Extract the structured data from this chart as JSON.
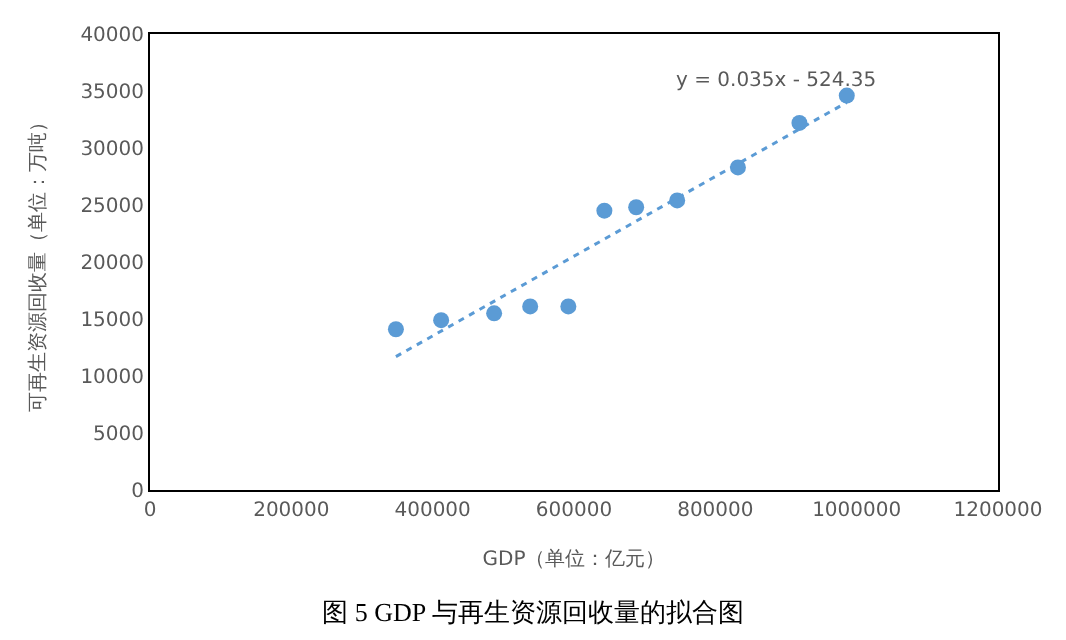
{
  "chart_data": {
    "type": "scatter",
    "title": "图 5 GDP 与再生资源回收量的拟合图",
    "xlabel": "GDP（单位：亿元）",
    "ylabel": "可再生资源回收量（单位：万吨）",
    "x": [
      348000,
      412000,
      487000,
      538000,
      592000,
      643000,
      688000,
      746000,
      832000,
      919000,
      986000
    ],
    "series": [
      {
        "color": "#5b9bd5",
        "marker": "circle",
        "values": [
          14100,
          14900,
          15500,
          16100,
          16100,
          24500,
          24800,
          25400,
          28300,
          32200,
          34600
        ]
      },
      {
        "type": "line",
        "color": "#5b9bd5",
        "line_style": "dotted",
        "x": [
          348000,
          986000
        ],
        "values": [
          11700,
          34000
        ]
      }
    ],
    "annotations": [
      "y = 0.035x - 524.35"
    ],
    "xlim": [
      0,
      1200000
    ],
    "xticks": [
      0,
      200000,
      400000,
      600000,
      800000,
      1000000,
      1200000
    ],
    "ylim": [
      0,
      40000
    ],
    "yticks": [
      0,
      5000,
      10000,
      15000,
      20000,
      25000,
      30000,
      35000,
      40000
    ],
    "grid": false,
    "legend": false
  }
}
